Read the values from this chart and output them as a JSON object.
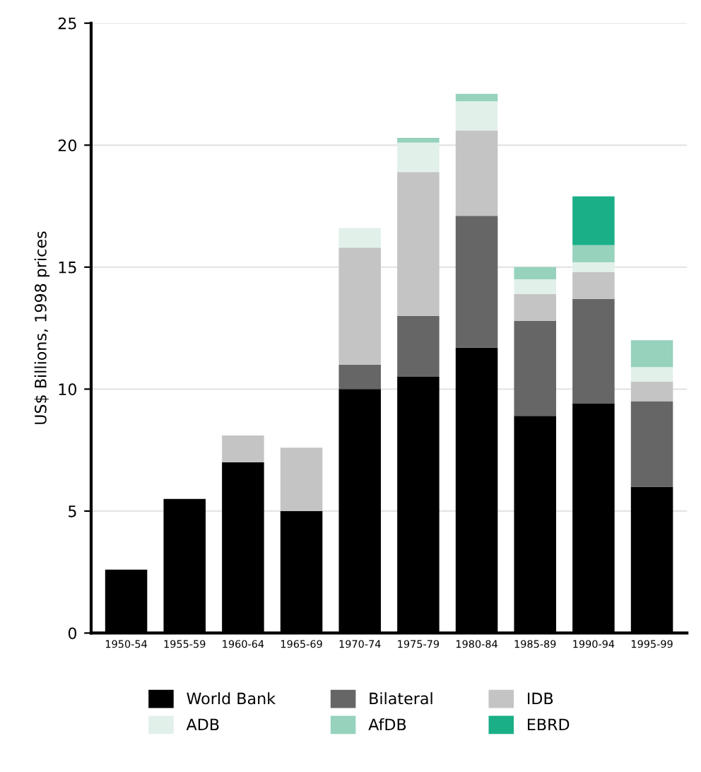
{
  "chart_data": {
    "type": "bar",
    "stacked": true,
    "ylabel": "US$ Billions, 1998 prices",
    "categories": [
      "1950-54",
      "1955-59",
      "1960-64",
      "1965-69",
      "1970-74",
      "1975-79",
      "1980-84",
      "1985-89",
      "1990-94",
      "1995-99"
    ],
    "series": [
      {
        "name": "World Bank",
        "color": "#000000",
        "values": [
          2.6,
          5.5,
          7.0,
          5.0,
          10.0,
          10.5,
          11.7,
          8.9,
          9.4,
          6.0
        ]
      },
      {
        "name": "Bilateral",
        "color": "#666666",
        "values": [
          null,
          null,
          null,
          null,
          1.0,
          2.5,
          5.4,
          3.9,
          4.3,
          3.5
        ]
      },
      {
        "name": "IDB",
        "color": "#c4c4c4",
        "values": [
          null,
          null,
          1.1,
          2.6,
          4.8,
          5.9,
          3.5,
          1.1,
          1.1,
          0.8
        ]
      },
      {
        "name": "ADB",
        "color": "#e2f0ea",
        "values": [
          null,
          null,
          null,
          null,
          0.8,
          1.2,
          1.2,
          0.6,
          0.4,
          0.6
        ]
      },
      {
        "name": "AfDB",
        "color": "#96d2bc",
        "values": [
          null,
          null,
          null,
          null,
          null,
          0.2,
          0.3,
          0.5,
          0.7,
          1.1
        ]
      },
      {
        "name": "EBRD",
        "color": "#1aaf86",
        "values": [
          null,
          null,
          null,
          null,
          null,
          null,
          null,
          null,
          2.0,
          null
        ]
      }
    ],
    "ylim": [
      0,
      25
    ],
    "yticks": [
      0,
      5,
      10,
      15,
      20,
      25
    ],
    "grid": "y",
    "legend": "bottom"
  }
}
